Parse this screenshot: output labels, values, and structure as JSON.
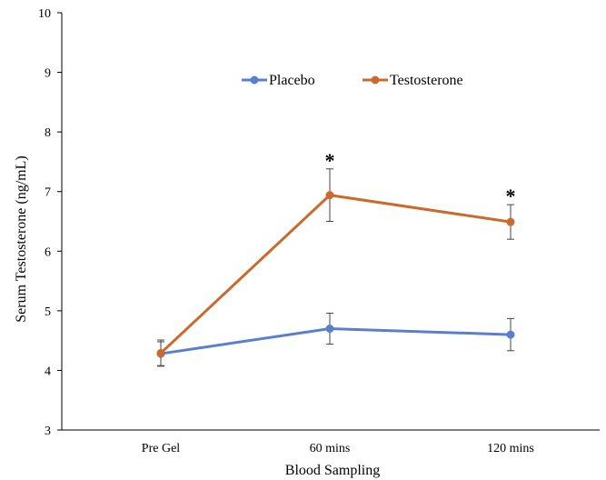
{
  "chart_data": {
    "type": "line",
    "xlabel": "Blood Sampling",
    "ylabel": "Serum Testosterone (ng/mL)",
    "categories": [
      "Pre Gel",
      "60 mins",
      "120 mins"
    ],
    "ylim": [
      3,
      10
    ],
    "yticks": [
      3,
      4,
      5,
      6,
      7,
      8,
      9,
      10
    ],
    "grid": false,
    "legend_position": "top-center",
    "series": [
      {
        "name": "Placebo",
        "color": "#5b7fcf",
        "values": [
          4.28,
          4.7,
          4.6
        ],
        "error": [
          0.2,
          0.26,
          0.27
        ]
      },
      {
        "name": "Testosterone",
        "color": "#cc6a2c",
        "values": [
          4.29,
          6.94,
          6.49
        ],
        "error": [
          0.22,
          0.44,
          0.29
        ]
      }
    ],
    "annotations": [
      {
        "category": "60 mins",
        "text": "*"
      },
      {
        "category": "120 mins",
        "text": "*"
      }
    ]
  }
}
